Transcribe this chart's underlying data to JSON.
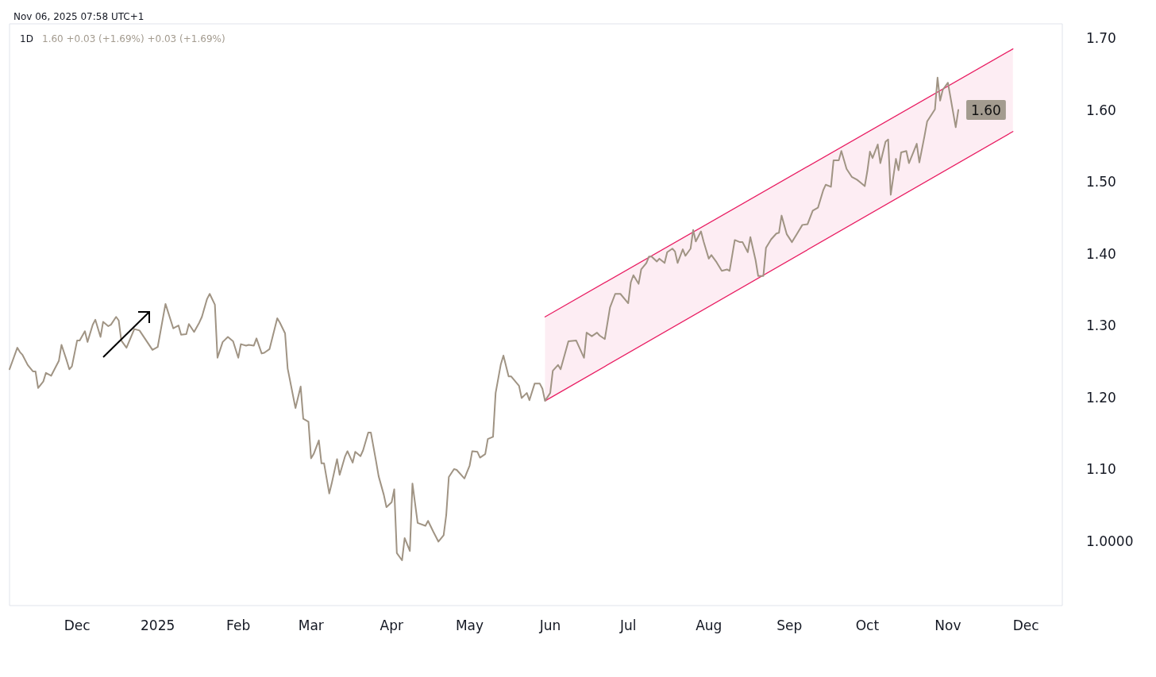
{
  "chart_data": {
    "type": "line",
    "title": "1D",
    "subtitle": "1.60 +0.03 (+1.69%) +0.03 (+1.69%)",
    "annotations": [
      "Nov 06, 2025 07:58 UTC+1"
    ],
    "xlim": [
      "2024-11-05",
      "2025-12-15"
    ],
    "xticks": [
      {
        "value": "2024-12-01",
        "label": "Dec"
      },
      {
        "value": "2025-01-01",
        "label": "2025"
      },
      {
        "value": "2025-02-01",
        "label": "Feb"
      },
      {
        "value": "2025-03-01",
        "label": "Mar"
      },
      {
        "value": "2025-04-01",
        "label": "Apr"
      },
      {
        "value": "2025-05-01",
        "label": "May"
      },
      {
        "value": "2025-06-01",
        "label": "Jun"
      },
      {
        "value": "2025-07-01",
        "label": "Jul"
      },
      {
        "value": "2025-08-01",
        "label": "Aug"
      },
      {
        "value": "2025-09-01",
        "label": "Sep"
      },
      {
        "value": "2025-10-01",
        "label": "Oct"
      },
      {
        "value": "2025-11-01",
        "label": "Nov"
      },
      {
        "value": "2025-12-01",
        "label": "Dec"
      }
    ],
    "ylim": [
      0.91,
      1.72
    ],
    "yticks": [
      {
        "value": 1.0,
        "label": "1.0000"
      },
      {
        "value": 1.1,
        "label": "1.10"
      },
      {
        "value": 1.2,
        "label": "1.20"
      },
      {
        "value": 1.3,
        "label": "1.30"
      },
      {
        "value": 1.4,
        "label": "1.40"
      },
      {
        "value": 1.5,
        "label": "1.50"
      },
      {
        "value": 1.6,
        "label": "1.60"
      },
      {
        "value": 1.7,
        "label": "1.70"
      }
    ],
    "grid": false,
    "marker": "none",
    "line_style": "solid",
    "series": [
      {
        "type": "line",
        "color": "#a09484",
        "x": [
          "2024-11-05",
          "2024-11-08",
          "2024-11-09",
          "2024-11-10",
          "2024-11-12",
          "2024-11-14",
          "2024-11-15",
          "2024-11-16",
          "2024-11-18",
          "2024-11-19",
          "2024-11-21",
          "2024-11-24",
          "2024-11-25",
          "2024-11-27",
          "2024-11-28",
          "2024-11-29",
          "2024-12-01",
          "2024-12-02",
          "2024-12-04",
          "2024-12-05",
          "2024-12-07",
          "2024-12-08",
          "2024-12-10",
          "2024-12-11",
          "2024-12-13",
          "2024-12-14",
          "2024-12-16",
          "2024-12-17",
          "2024-12-18",
          "2024-12-20",
          "2024-12-23",
          "2024-12-25",
          "2024-12-30",
          "2025-01-01",
          "2025-01-04",
          "2025-01-07",
          "2025-01-09",
          "2025-01-10",
          "2025-01-12",
          "2025-01-13",
          "2025-01-15",
          "2025-01-17",
          "2025-01-18",
          "2025-01-20",
          "2025-01-21",
          "2025-01-23",
          "2025-01-24",
          "2025-01-26",
          "2025-01-28",
          "2025-01-30",
          "2025-02-01",
          "2025-02-02",
          "2025-02-04",
          "2025-02-05",
          "2025-02-07",
          "2025-02-08",
          "2025-02-10",
          "2025-02-11",
          "2025-02-13",
          "2025-02-16",
          "2025-02-17",
          "2025-02-19",
          "2025-02-20",
          "2025-02-23",
          "2025-02-25",
          "2025-02-26",
          "2025-02-28",
          "2025-03-01",
          "2025-03-02",
          "2025-03-04",
          "2025-03-05",
          "2025-03-06",
          "2025-03-08",
          "2025-03-09",
          "2025-03-11",
          "2025-03-12",
          "2025-03-14",
          "2025-03-15",
          "2025-03-17",
          "2025-03-18",
          "2025-03-20",
          "2025-03-21",
          "2025-03-23",
          "2025-03-24",
          "2025-03-26",
          "2025-03-27",
          "2025-03-29",
          "2025-03-30",
          "2025-04-01",
          "2025-04-02",
          "2025-04-03",
          "2025-04-05",
          "2025-04-06",
          "2025-04-08",
          "2025-04-09",
          "2025-04-11",
          "2025-04-14",
          "2025-04-15",
          "2025-04-17",
          "2025-04-19",
          "2025-04-21",
          "2025-04-22",
          "2025-04-23",
          "2025-04-25",
          "2025-04-26",
          "2025-04-29",
          "2025-05-01",
          "2025-05-02",
          "2025-05-04",
          "2025-05-05",
          "2025-05-07",
          "2025-05-08",
          "2025-05-10",
          "2025-05-11",
          "2025-05-13",
          "2025-05-14",
          "2025-05-16",
          "2025-05-17",
          "2025-05-20",
          "2025-05-21",
          "2025-05-23",
          "2025-05-24",
          "2025-05-26",
          "2025-05-28",
          "2025-05-29",
          "2025-05-30",
          "2025-06-01",
          "2025-06-02",
          "2025-06-04",
          "2025-06-05",
          "2025-06-08",
          "2025-06-11",
          "2025-06-14",
          "2025-06-15",
          "2025-06-17",
          "2025-06-19",
          "2025-06-20",
          "2025-06-22",
          "2025-06-24",
          "2025-06-26",
          "2025-06-28",
          "2025-07-01",
          "2025-07-02",
          "2025-07-03",
          "2025-07-05",
          "2025-07-06",
          "2025-07-08",
          "2025-07-09",
          "2025-07-10",
          "2025-07-12",
          "2025-07-13",
          "2025-07-15",
          "2025-07-16",
          "2025-07-18",
          "2025-07-19",
          "2025-07-20",
          "2025-07-22",
          "2025-07-23",
          "2025-07-25",
          "2025-07-26",
          "2025-07-27",
          "2025-07-29",
          "2025-07-30",
          "2025-08-01",
          "2025-08-02",
          "2025-08-04",
          "2025-08-06",
          "2025-08-08",
          "2025-08-09",
          "2025-08-11",
          "2025-08-13",
          "2025-08-14",
          "2025-08-16",
          "2025-08-17",
          "2025-08-19",
          "2025-08-20",
          "2025-08-22",
          "2025-08-23",
          "2025-08-25",
          "2025-08-27",
          "2025-08-28",
          "2025-08-29",
          "2025-08-31",
          "2025-09-02",
          "2025-09-04",
          "2025-09-06",
          "2025-09-08",
          "2025-09-10",
          "2025-09-12",
          "2025-09-14",
          "2025-09-15",
          "2025-09-17",
          "2025-09-18",
          "2025-09-20",
          "2025-09-21",
          "2025-09-23",
          "2025-09-25",
          "2025-09-27",
          "2025-09-28",
          "2025-09-30",
          "2025-10-01",
          "2025-10-02",
          "2025-10-03",
          "2025-10-05",
          "2025-10-06",
          "2025-10-08",
          "2025-10-09",
          "2025-10-10",
          "2025-10-12",
          "2025-10-13",
          "2025-10-14",
          "2025-10-16",
          "2025-10-17",
          "2025-10-19",
          "2025-10-20",
          "2025-10-21",
          "2025-10-23",
          "2025-10-24",
          "2025-10-27",
          "2025-10-28",
          "2025-10-29",
          "2025-10-30",
          "2025-11-01",
          "2025-11-04",
          "2025-11-05"
        ],
        "values": [
          1.239,
          1.269,
          1.263,
          1.259,
          1.245,
          1.236,
          1.236,
          1.213,
          1.222,
          1.234,
          1.23,
          1.251,
          1.273,
          1.251,
          1.239,
          1.243,
          1.279,
          1.279,
          1.292,
          1.277,
          1.301,
          1.308,
          1.284,
          1.305,
          1.299,
          1.301,
          1.312,
          1.307,
          1.279,
          1.269,
          1.295,
          1.293,
          1.266,
          1.27,
          1.33,
          1.296,
          1.3,
          1.287,
          1.288,
          1.302,
          1.291,
          1.304,
          1.312,
          1.337,
          1.344,
          1.329,
          1.255,
          1.277,
          1.284,
          1.278,
          1.255,
          1.274,
          1.272,
          1.273,
          1.272,
          1.282,
          1.261,
          1.262,
          1.267,
          1.31,
          1.304,
          1.289,
          1.24,
          1.185,
          1.215,
          1.17,
          1.166,
          1.115,
          1.121,
          1.14,
          1.108,
          1.108,
          1.066,
          1.081,
          1.114,
          1.092,
          1.117,
          1.125,
          1.109,
          1.124,
          1.118,
          1.126,
          1.151,
          1.151,
          1.111,
          1.09,
          1.064,
          1.047,
          1.054,
          1.072,
          0.983,
          0.973,
          1.004,
          0.986,
          1.08,
          1.025,
          1.021,
          1.028,
          1.013,
          0.999,
          1.008,
          1.036,
          1.089,
          1.1,
          1.099,
          1.087,
          1.105,
          1.125,
          1.124,
          1.116,
          1.121,
          1.142,
          1.145,
          1.206,
          1.246,
          1.258,
          1.229,
          1.229,
          1.216,
          1.199,
          1.206,
          1.196,
          1.219,
          1.219,
          1.212,
          1.195,
          1.206,
          1.237,
          1.245,
          1.239,
          1.278,
          1.279,
          1.255,
          1.29,
          1.285,
          1.29,
          1.286,
          1.281,
          1.325,
          1.344,
          1.344,
          1.331,
          1.36,
          1.37,
          1.358,
          1.378,
          1.387,
          1.396,
          1.396,
          1.389,
          1.393,
          1.387,
          1.402,
          1.407,
          1.403,
          1.387,
          1.406,
          1.397,
          1.407,
          1.433,
          1.417,
          1.431,
          1.417,
          1.393,
          1.398,
          1.388,
          1.376,
          1.378,
          1.376,
          1.419,
          1.416,
          1.416,
          1.402,
          1.423,
          1.391,
          1.369,
          1.369,
          1.408,
          1.42,
          1.428,
          1.429,
          1.453,
          1.427,
          1.416,
          1.428,
          1.44,
          1.441,
          1.46,
          1.464,
          1.488,
          1.496,
          1.493,
          1.53,
          1.53,
          1.543,
          1.518,
          1.507,
          1.503,
          1.5,
          1.494,
          1.515,
          1.542,
          1.533,
          1.552,
          1.526,
          1.556,
          1.559,
          1.482,
          1.532,
          1.516,
          1.541,
          1.543,
          1.526,
          1.544,
          1.553,
          1.527,
          1.564,
          1.584,
          1.601,
          1.645,
          1.613,
          1.628,
          1.638,
          1.576,
          1.6
        ],
        "value_labels": [
          null,
          null,
          null,
          null,
          null,
          null,
          null,
          null,
          null,
          null,
          null,
          null,
          null,
          null,
          null,
          null,
          null,
          null,
          null,
          null,
          null,
          null,
          null,
          null,
          null,
          null,
          null,
          null,
          null,
          null,
          null,
          null,
          null,
          null,
          null,
          null,
          null,
          null,
          null,
          null,
          null,
          null,
          null,
          null,
          null,
          null,
          null,
          null,
          null,
          null,
          null,
          null,
          null,
          null,
          null,
          null,
          null,
          null,
          null,
          null,
          null,
          null,
          null,
          null,
          null,
          null,
          null,
          null,
          null,
          null,
          null,
          null,
          null,
          null,
          null,
          null,
          null,
          null,
          null,
          null,
          null,
          null,
          null,
          null,
          null,
          null,
          null,
          null,
          null,
          null,
          null,
          null,
          null,
          null,
          null,
          null,
          null,
          null,
          null,
          null,
          null,
          null,
          null,
          null,
          null,
          null,
          null,
          null,
          null,
          null,
          null,
          null,
          null,
          null,
          null,
          null,
          null,
          null,
          null,
          null,
          null,
          null,
          null,
          null,
          null,
          null,
          null,
          null,
          null,
          null,
          null,
          null,
          null,
          null,
          null,
          null,
          null,
          null,
          null,
          null,
          null,
          null,
          null,
          null,
          null,
          null,
          null,
          null,
          null,
          null,
          null,
          null,
          null,
          null,
          null,
          null,
          null,
          null,
          null,
          null,
          null,
          null,
          null,
          null,
          null,
          null,
          null,
          null,
          null,
          null,
          null,
          null,
          null,
          null,
          null,
          null,
          null,
          null,
          null,
          null,
          null,
          null,
          null,
          null,
          null,
          null,
          null,
          null,
          null,
          null,
          null,
          null,
          null,
          null,
          null,
          null,
          null,
          null,
          null,
          null,
          null,
          null,
          null,
          null,
          null,
          null,
          null,
          null,
          null,
          null,
          null,
          null,
          null,
          null,
          null,
          null,
          null,
          null,
          null,
          null,
          null,
          null,
          null,
          null,
          "1.60"
        ]
      },
      {
        "type": "line",
        "color": "#e91e63",
        "x": [
          "2025-05-30",
          "2025-11-26"
        ],
        "values": [
          1.312,
          1.685
        ],
        "lower": [
          1.195,
          1.57
        ],
        "upper": [
          1.312,
          1.685
        ]
      },
      {
        "type": "line",
        "color": "#e91e63",
        "x": [
          "2025-05-30",
          "2025-11-26"
        ],
        "values": [
          1.195,
          1.57
        ]
      }
    ]
  }
}
